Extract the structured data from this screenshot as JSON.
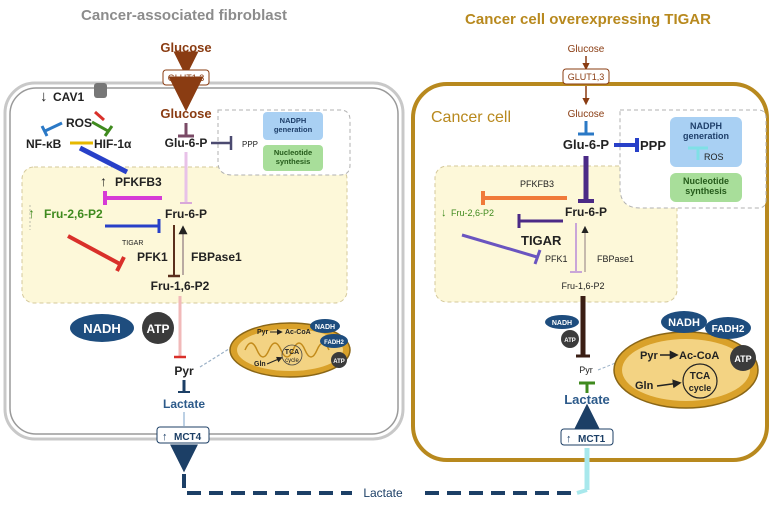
{
  "titles": {
    "left": "Cancer-associated fibroblast",
    "right": "Cancer cell overexpressing TIGAR"
  },
  "left": {
    "glucose_out": "Glucose",
    "glut": "GLUT1,3",
    "glucose_in": "Glucose",
    "cav1": "CAV1",
    "ros": "ROS",
    "nfkb": "NF-κB",
    "hif": "HIF-1α",
    "glu6p": "Glu-6-P",
    "ppp": "PPP",
    "nadph": "NADPH generation",
    "nucleotide": "Nucleotide synthesis",
    "pfkfb3": "PFKFB3",
    "fru26": "Fru-2,6-P2",
    "fru6p": "Fru-6-P",
    "tigar": "TIGAR",
    "pfk1": "PFK1",
    "fbpase1": "FBPase1",
    "fru16": "Fru-1,6-P2",
    "nadh": "NADH",
    "atp": "ATP",
    "pyr": "Pyr",
    "lactate": "Lactate",
    "mct": "MCT4",
    "mito": {
      "pyr": "Pyr",
      "acoa": "Ac-CoA",
      "gln": "Gln",
      "tca": "TCA",
      "cycle": "cycle",
      "nadh": "NADH",
      "fadh": "FADH2",
      "atp": "ATP"
    }
  },
  "right": {
    "glucose_out": "Glucose",
    "glut": "GLUT1,3",
    "cell_label": "Cancer cell",
    "glucose_in": "Glucose",
    "glu6p": "Glu-6-P",
    "ppp": "PPP",
    "nadph": "NADPH generation",
    "ros": "ROS",
    "nucleotide": "Nucleotide synthesis",
    "pfkfb3": "PFKFB3",
    "fru26": "Fru-2,6-P2",
    "fru6p": "Fru-6-P",
    "tigar": "TIGAR",
    "pfk1": "PFK1",
    "fbpase1": "FBPase1",
    "fru16": "Fru-1,6-P2",
    "nadh": "NADH",
    "atp": "ATP",
    "pyr": "Pyr",
    "lactate": "Lactate",
    "mct": "MCT1",
    "mito": {
      "nadh": "NADH",
      "fadh": "FADH2",
      "pyr": "Pyr",
      "acoa": "Ac-CoA",
      "gln": "Gln",
      "tca": "TCA",
      "cycle": "cycle",
      "atp": "ATP"
    }
  },
  "bottom_lactate": "Lactate",
  "colors": {
    "brown": "#8a3c12",
    "gold": "#b8891e",
    "navy": "#1c3f66",
    "green": "#3f8a1e",
    "magenta": "#d63bd6",
    "red": "#d9302a",
    "blue": "#2840c8",
    "purple": "#4b2a86"
  }
}
